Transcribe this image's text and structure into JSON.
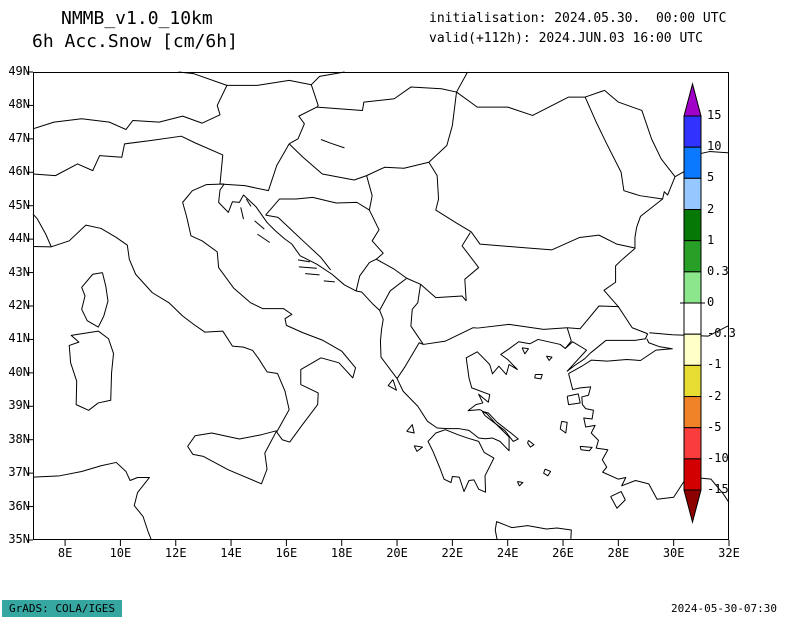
{
  "header": {
    "model": "NMMB_v1.0_10km",
    "field": "6h Acc.Snow [cm/6h]",
    "init": "initialisation: 2024.05.30.  00:00 UTC",
    "valid": "valid(+112h): 2024.JUN.03 16:00 UTC"
  },
  "footer": {
    "grads": "GrADS: COLA/IGES",
    "timestamp": "2024-05-30-07:30"
  },
  "chart_data": {
    "type": "map",
    "map_type": "weather-model-output",
    "title": "6h Acc.Snow [cm/6h]",
    "model": "NMMB_v1.0_10km",
    "initialisation": "2024.05.30. 00:00 UTC",
    "valid": "2024.JUN.03 16:00 UTC",
    "forecast_hour": "+112h",
    "region": "Central/Southeast Europe: Italy, Adriatic, Balkans, Greece, Aegean, W Turkey, W Black Sea",
    "lon_range": [
      6.84,
      32
    ],
    "lat_range": [
      35,
      49
    ],
    "lon_ticks": [
      "8E",
      "10E",
      "12E",
      "14E",
      "16E",
      "18E",
      "20E",
      "22E",
      "24E",
      "26E",
      "28E",
      "30E",
      "32E"
    ],
    "lat_ticks": [
      "49N",
      "48N",
      "47N",
      "46N",
      "45N",
      "44N",
      "43N",
      "42N",
      "41N",
      "40N",
      "39N",
      "38N",
      "37N",
      "36N",
      "35N"
    ],
    "grid": "off",
    "legend_position": "right-vertical-colorbar",
    "colorbar": {
      "units": "cm/6h",
      "levels": [
        "15",
        "10",
        "5",
        "2",
        "1",
        "0.3",
        "0",
        "-0.3",
        "-1",
        "-2",
        "-5",
        "-10",
        "-15"
      ],
      "colors_top_to_bottom": [
        "#a000c8",
        "#3232ff",
        "#0a78ff",
        "#96c8ff",
        "#057805",
        "#28a028",
        "#8ce68c",
        "#ffffff",
        "#ffffc8",
        "#e6dc32",
        "#f08228",
        "#fa3c3c",
        "#d20000",
        "#8c0000"
      ]
    },
    "field_values": "empty field - no shaded 6h accumulated snow anywhere in the domain"
  },
  "map_geometry": {
    "coastlines": [
      "M6.84 43.78L7.5 43.77L8.15 43.95L8.75 44.42L9.3 44.32L9.85 44.05L10.25 43.82L10.32 43.4L10.55 42.95L11.15 42.4L11.75 42.1L12.25 41.7L12.65 41.45L13.05 41.22L13.7 41.25L14.05 40.8L14.45 40.77L14.78 40.67L15.0 40.42L15.3 40.03L15.68 39.98L15.95 39.45L16.1 38.9L15.65 38.23L15.85 38.0L16.12 37.93L16.58 38.45L17.13 39.05L17.15 39.4L16.52 39.65L16.52 40.1L17.25 40.45L17.9 40.3L18.4 39.85L18.5 40.15L18.0 40.65L17.3 40.98L16.6 41.2L16.0 41.42L15.95 41.62L16.2 41.75L15.9 41.92L15.15 41.92L14.7 42.1L14.1 42.53L13.55 43.15L13.5 43.62L12.95 43.95L12.55 44.1L12.4 44.65L12.25 45.1L12.6 45.45L13.1 45.63L13.75 45.65",
      "M13.75 45.65L13.6 45.47L13.55 45.1L13.9 44.8L14.05 45.12L14.3 45.1L14.45 45.32L14.9 44.97L15.3 44.5L15.6 44.25L15.95 44.0L16.2 43.85L16.5 43.5L17.1 43.25L17.65 42.95L18.1 42.63L18.52 42.45L18.72 42.42L19.1 42.08L19.37 41.87L19.5 41.6L19.44 41.3L19.4 40.95L19.42 40.47L19.8 40.05L20.0 39.83L20.22 39.45L20.75 39.0L21.1 38.55L21.45 38.35L21.82 38.33L22.25 38.33L22.6 38.28L22.95 38.05L23.2 38.03L23.45 38.05L23.72 37.95L24.05 37.67L24.05 38.08L23.6 38.45L23.25 38.77L23.0 38.9L22.57 38.87L22.85 39.05L23.1 39.1L22.95 39.36L23.3 39.12L23.35 39.35L22.7 39.55L22.6 39.85L22.5 40.45L22.9 40.63L23.35 40.25L23.45 39.97L23.68 40.2L23.95 39.95L24.05 40.25L24.35 40.1L24.0 40.4L23.75 40.55L24.05 40.72L24.4 40.93L24.8 40.87L25.1 41.0L25.9 40.85L26.08 40.73L26.35 40.93L26.85 40.68L26.15 40.05L26.42 40.22L26.78 40.42L27.0 40.6L27.55 40.97L28.6 40.97L28.98 41.02L29.06 41.17",
      "M29.06 41.17L28.5 41.35L28.0 41.98L27.48 42.47L27.9 42.71L27.9 43.2L28.15 43.4L28.6 43.72L28.6 44.05L28.66 44.35L28.8 44.68L29.6 45.2L29.66 45.42L29.78 45.32L30.05 45.87L30.76 46.2L30.52 46.48L31.3 46.62L32.0 46.58",
      "M26.2 39.98L26.72 40.22L27.02 40.38L27.6 40.35L28.3 40.4L28.8 40.37L29.36 40.68L29.95 40.72L29.5 40.78L29.1 40.9L29.03 41.02",
      "M26.2 39.98L26.35 39.5L26.62 39.55L27.0 39.58L26.92 39.33L26.68 39.28L26.7 39.05L26.82 38.93L27.1 38.88L27.05 38.62L26.75 38.65L26.82 38.38L27.16 38.43L27.02 38.2L27.28 37.98L27.2 37.75L27.62 37.7L27.42 37.4L27.58 37.18L27.43 37.03L28.0 36.82L28.27 36.87L28.12 36.62L28.62 36.78L29.1 36.68L29.4 36.22L30.0 36.28L30.45 36.85L30.62 36.88L31.35 36.82L31.8 36.37L32.0 36.12",
      "M29.12 41.2L29.95 41.14L31.25 41.1L32.0 41.42",
      "M22.95 37.95L23.15 37.62L23.5 37.45L23.18 36.92L23.2 36.43L22.95 36.52L22.78 36.8L22.6 36.78L22.42 36.45L22.25 36.88L22.0 36.9L21.95 36.72L21.7 36.82L21.55 37.15L21.3 37.65L21.12 37.95L21.4 38.2L21.75 38.3L22.2 38.15L22.55 38.05L22.95 37.95",
      "M9.35 43.0L9.47 42.6L9.55 42.15L9.4 41.7L9.2 41.37L8.8 41.56L8.6 41.9L8.72 42.3L8.6 42.56L9.0 42.95L9.35 43.0",
      "M9.2 41.25L9.57 41.02L9.75 40.58L9.68 40.0L9.65 39.18L9.2 39.1L8.85 38.88L8.4 39.05L8.42 39.75L8.2 40.3L8.15 40.82L8.5 40.92L8.22 41.12L9.2 41.25",
      "M15.65 38.27L15.1 38.15L14.3 38.02L13.3 38.2L12.7 38.12L12.43 37.8L12.62 37.56L13.0 37.5L13.9 37.1L15.1 36.68L15.3 37.12L15.22 37.6L15.65 38.27",
      "M6.84 36.88L7.8 36.92L8.6 37.05L9.3 37.22L9.85 37.32L10.2 37.05L10.35 36.78L10.62 36.87L11.05 36.87L10.62 36.42L10.5 36.03L10.82 35.7L11.0 35.25L11.12 35.0",
      "M23.62 35.0L23.55 35.3L23.6 35.55L24.15 35.37L24.72 35.43L25.4 35.33L25.78 35.36L26.3 35.3L26.28 35.0",
      "M23.08 38.85L23.3 38.8L23.62 38.52L24.12 38.2L24.38 38.02L24.2 37.95L23.9 38.27L23.45 38.55L23.18 38.72L23.08 38.85",
      "M19.85 39.8L19.98 39.48L19.68 39.62L19.85 39.8",
      "M20.35 38.25L20.55 38.45L20.62 38.2L20.35 38.25",
      "M20.62 37.82L20.92 37.78L20.72 37.65L20.62 37.82",
      "M26.15 39.3L26.55 39.37L26.62 39.1L26.2 39.05L26.15 39.3",
      "M25.95 38.55L26.15 38.52L26.1 38.2L25.9 38.32L25.95 38.55",
      "M26.62 37.8L27.05 37.77L26.95 37.67L26.65 37.7L26.62 37.8",
      "M25.0 39.95L25.25 39.95L25.2 39.82L24.98 39.85L25.0 39.95",
      "M24.52 40.75L24.75 40.72L24.62 40.57L24.52 40.75",
      "M25.4 40.5L25.6 40.47L25.5 40.37L25.4 40.5",
      "M27.72 36.3L28.1 36.45L28.25 36.2L27.95 35.95L27.72 36.3",
      "M24.75 37.98L24.95 37.85L24.82 37.78L24.72 37.9L24.75 37.98",
      "M25.35 37.12L25.55 37.05L25.45 36.92L25.3 37.0L25.35 37.12",
      "M24.35 36.75L24.55 36.72L24.42 36.62L24.35 36.75",
      "M14.35 44.95L14.45 44.6",
      "M14.55 45.2L14.72 44.98",
      "M14.85 44.55L15.2 44.3",
      "M14.95 44.15L15.4 43.9",
      "M16.42 43.38L16.85 43.32",
      "M16.45 43.17L17.1 43.13",
      "M16.68 42.97L17.2 42.93",
      "M17.35 42.75L17.75 42.72",
      "M17.25 46.98L17.6 46.87L18.1 46.73"
    ],
    "borders": [
      "M6.84 45.95L7.65 45.9L8.45 46.25L9.0 46.05L9.25 46.5L10.05 46.45L10.15 46.85L11.1 46.95L12.2 47.08L12.7 46.88L13.7 46.52L13.6 45.65",
      "M6.84 47.3L7.6 47.5L8.6 47.6L9.6 47.5L10.2 47.28L10.45 47.55L11.4 47.5L12.25 47.68L12.95 47.47L13.6 47.72L13.5 48.0L13.85 48.6",
      "M12.1 49.0L12.65 48.95L13.85 48.6L14.95 48.6L16.1 48.75L16.9 48.62L17.2 48.87L18.1 49.0",
      "M16.9 48.62L17.15 48.0L17.1 47.95L16.45 47.68L16.65 47.45L16.42 47.0L16.1 46.85",
      "M17.1 47.95L18.75 47.85L18.8 48.1L19.9 48.2L20.5 48.55L21.6 48.5L22.15 48.4",
      "M22.15 48.4L22.55 49.0",
      "M22.15 48.4L22.9 47.95L24.0 47.95L24.9 47.7L26.2 48.25L26.8 48.25L27.5 48.45",
      "M16.1 46.85L16.6 46.45L17.3 45.95L18.45 45.77L18.9 45.9L19.55 46.15L20.25 46.12L21.15 46.3L21.8 46.8L22.0 47.4L22.15 48.4",
      "M13.6 45.65L14.5 45.6L15.35 45.45L15.65 46.2L16.1 46.85",
      "M15.25 44.72L15.75 45.2L16.35 45.2L16.95 45.25L17.8 45.08L18.55 45.1L19.0 44.87",
      "M15.25 44.72L15.7 44.65L16.15 44.3L16.6 43.95L17.25 43.45L17.6 43.08",
      "M19.0 44.87L19.35 44.28L19.1 43.95L19.5 43.58L19.25 43.4L19.9 43.1L20.35 42.83",
      "M18.52 42.45L18.65 42.9L19.0 43.3L19.25 43.4",
      "M19.37 41.87L19.75 42.45L20.35 42.83",
      "M20.35 42.83L20.85 42.65L21.4 42.25L22.35 42.3L22.5 42.15",
      "M22.5 42.15L22.45 42.8L22.95 43.15L22.35 43.8L22.65 44.2",
      "M19.0 44.87L19.1 45.3L18.9 45.9",
      "M21.15 46.3L21.45 45.9L21.5 45.2L21.4 44.87L22.15 44.48L22.68 44.22L23.0 43.85L24.5 43.75L25.6 43.68L26.6 44.05L27.3 44.12L27.95 43.85L28.58 43.74",
      "M22.92 41.34L24.05 41.45L25.3 41.3L26.15 41.35",
      "M20.95 40.85L21.75 40.95L22.75 41.35L22.92 41.34",
      "M20.0 39.83L20.3 40.2L20.8 40.9L20.95 40.85",
      "M20.95 40.85L20.5 41.4L20.55 41.9L20.75 42.1L20.85 42.65",
      "M26.15 41.35L26.62 41.32L27.3 42.0L28.02 41.98",
      "M26.15 41.35L26.3 40.95L26.08 40.73",
      "M26.8 48.25L27.2 47.5L27.55 46.9L28.1 46.0L28.2 45.45L28.78 45.3L29.6 45.2",
      "M27.5 48.45L28.0 48.1L28.85 47.85L29.2 47.0L29.55 46.4L30.05 45.87",
      "M7.5 43.77L7.3 44.15L7.0 44.6L6.84 44.75"
    ]
  }
}
